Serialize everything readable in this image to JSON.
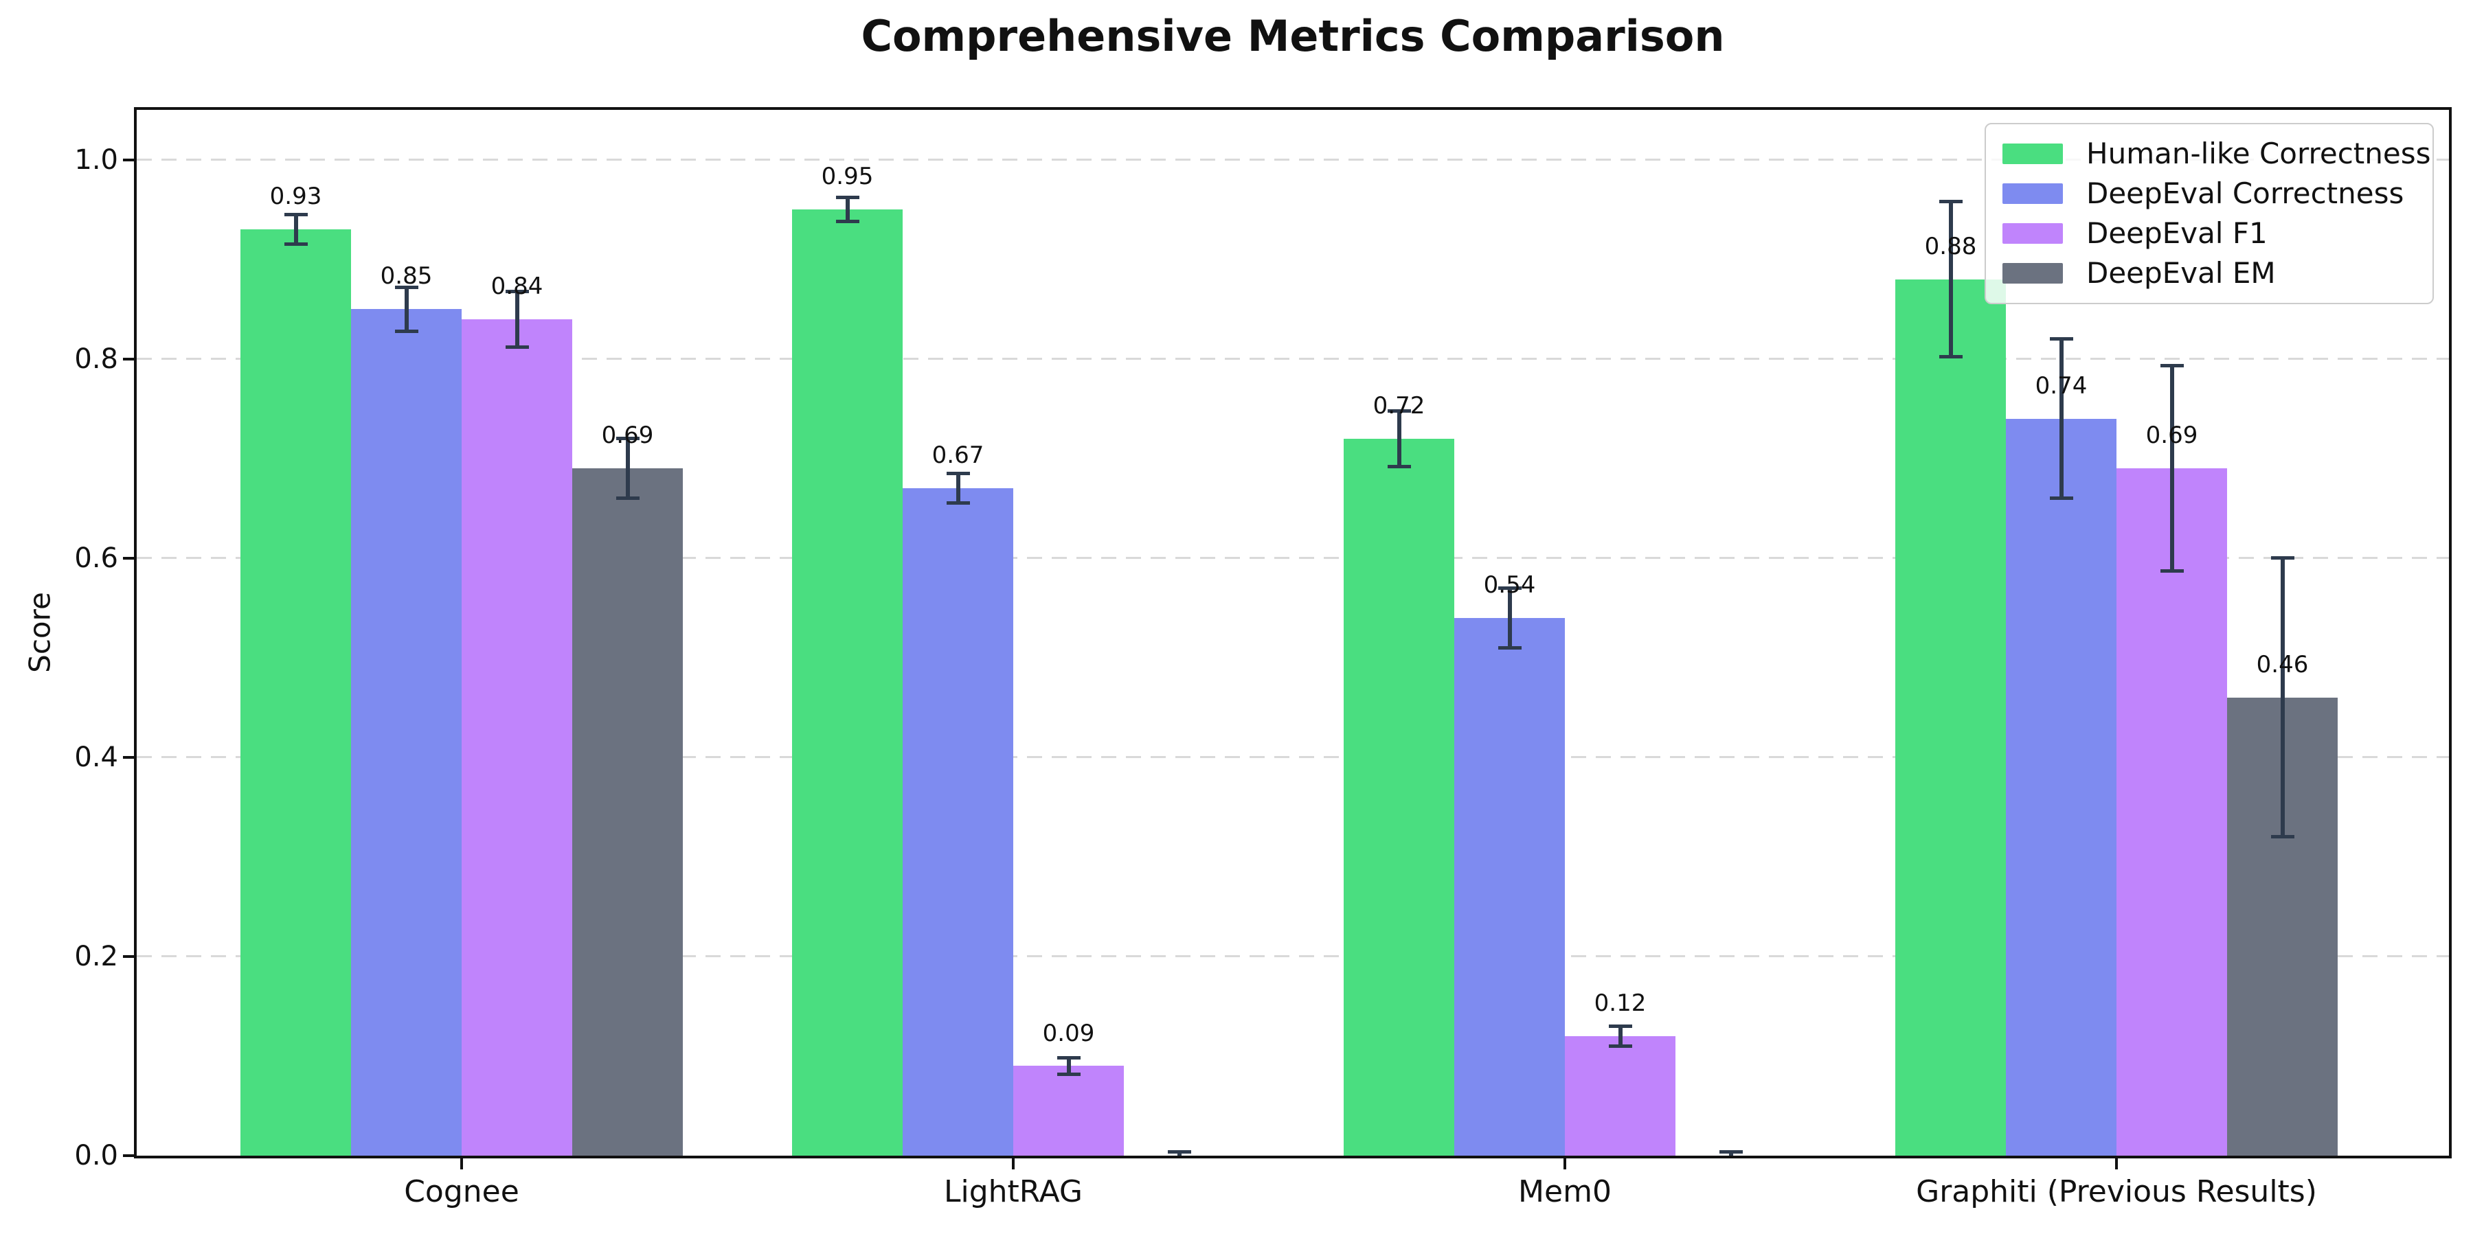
{
  "chart_data": {
    "type": "bar",
    "title": "Comprehensive Metrics Comparison",
    "ylabel": "Score",
    "xlabel": "",
    "categories": [
      "Cognee",
      "LightRAG",
      "Mem0",
      "Graphiti (Previous Results)"
    ],
    "yticks": [
      "0.0",
      "0.2",
      "0.4",
      "0.6",
      "0.8",
      "1.0"
    ],
    "ylim": [
      0,
      1.05
    ],
    "grid": "horizontal-dashed",
    "grid_color": "#d9d9d9",
    "spine_color": "#111111",
    "background_color": "#ffffff",
    "error_bar_color": "#2e3b4d",
    "legend_position": "upper-right",
    "series": [
      {
        "name": "Human-like Correctness",
        "color": "#4ade80",
        "values": [
          0.93,
          0.95,
          0.72,
          0.88
        ],
        "errors": [
          0.015,
          0.012,
          0.028,
          0.078
        ],
        "value_labels": [
          "0.93",
          "0.95",
          "0.72",
          "0.88"
        ]
      },
      {
        "name": "DeepEval Correctness",
        "color": "#7e8bf0",
        "values": [
          0.85,
          0.67,
          0.54,
          0.74
        ],
        "errors": [
          0.022,
          0.015,
          0.03,
          0.08
        ],
        "value_labels": [
          "0.85",
          "0.67",
          "0.54",
          "0.74"
        ]
      },
      {
        "name": "DeepEval F1",
        "color": "#c084fc",
        "values": [
          0.84,
          0.09,
          0.12,
          0.69
        ],
        "errors": [
          0.028,
          0.008,
          0.01,
          0.103
        ],
        "value_labels": [
          "0.84",
          "0.09",
          "0.12",
          "0.69"
        ]
      },
      {
        "name": "DeepEval EM",
        "color": "#6b7280",
        "values": [
          0.69,
          0.0,
          0.0,
          0.46
        ],
        "errors": [
          0.03,
          0.004,
          0.004,
          0.14
        ],
        "value_labels": [
          "0.69",
          "",
          "",
          "0.46"
        ]
      }
    ]
  }
}
